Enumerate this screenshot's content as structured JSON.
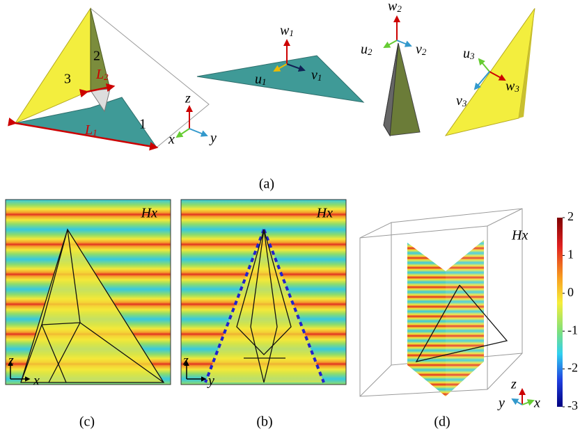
{
  "panel_a": {
    "label": "(a)",
    "faces": [
      "1",
      "2",
      "3"
    ],
    "lengths": [
      {
        "symbol": "L",
        "sub": "1"
      },
      {
        "symbol": "L",
        "sub": "2"
      }
    ],
    "axes": [
      "x",
      "y",
      "z"
    ],
    "frames": [
      [
        {
          "symbol": "u",
          "sub": "1"
        },
        {
          "symbol": "v",
          "sub": "1"
        },
        {
          "symbol": "w",
          "sub": "1"
        }
      ],
      [
        {
          "symbol": "u",
          "sub": "2"
        },
        {
          "symbol": "v",
          "sub": "2"
        },
        {
          "symbol": "w",
          "sub": "2"
        }
      ],
      [
        {
          "symbol": "u",
          "sub": "3"
        },
        {
          "symbol": "v",
          "sub": "3"
        },
        {
          "symbol": "w",
          "sub": "3"
        }
      ]
    ]
  },
  "panel_c": {
    "label": "(c)",
    "field": "Hx",
    "axes": [
      "z",
      "x"
    ]
  },
  "panel_b": {
    "label": "(b)",
    "field": "Hx",
    "axes": [
      "z",
      "y"
    ]
  },
  "panel_d": {
    "label": "(d)",
    "field": "Hx",
    "axes": [
      "z",
      "y",
      "x"
    ]
  },
  "colorbar": {
    "lim": [
      -3,
      2
    ],
    "ticks": [
      2,
      1,
      0,
      -1,
      -2,
      -3
    ]
  }
}
